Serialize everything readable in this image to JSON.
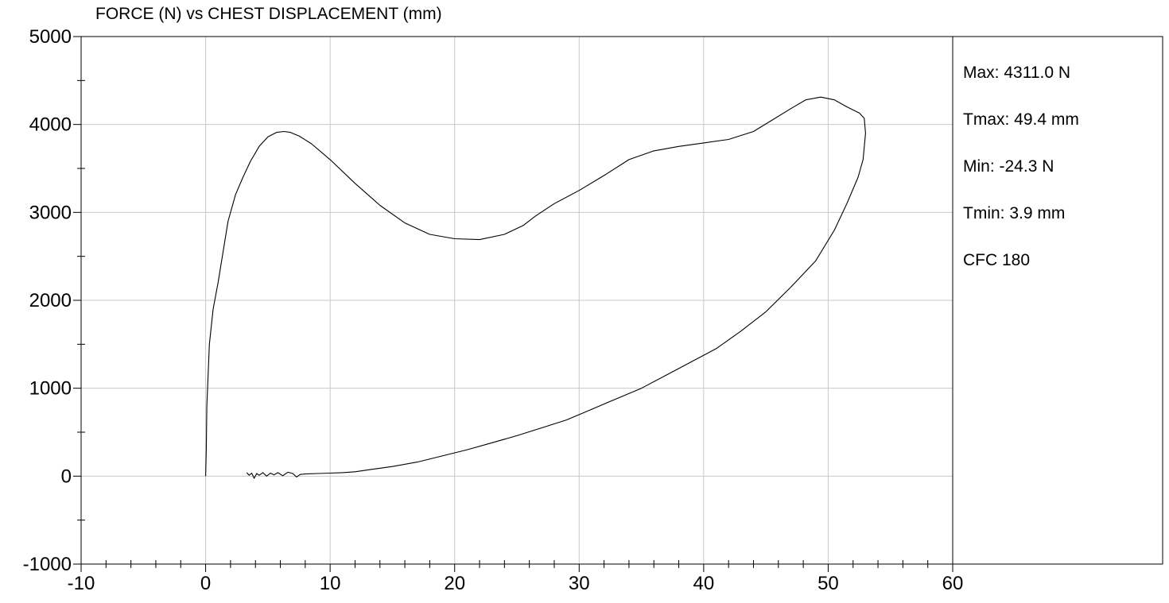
{
  "chart_data": {
    "type": "line",
    "title": "FORCE (N) vs CHEST DISPLACEMENT (mm)",
    "xlabel": "",
    "ylabel": "",
    "xlim": [
      -10,
      60
    ],
    "ylim": [
      -1000,
      5000
    ],
    "x_ticks": [
      -10,
      0,
      10,
      20,
      30,
      40,
      50,
      60
    ],
    "y_ticks": [
      -1000,
      0,
      1000,
      2000,
      3000,
      4000,
      5000
    ],
    "x_minor_step": 2,
    "y_minor_step": 500,
    "grid": true,
    "series": [
      {
        "color": "#000000",
        "x": [
          0.0,
          0.05,
          0.1,
          0.3,
          0.6,
          1.0,
          1.4,
          1.8,
          2.4,
          3.0,
          3.6,
          4.3,
          5.0,
          5.7,
          6.3,
          6.8,
          7.5,
          8.5,
          10.0,
          12.0,
          14.0,
          16.0,
          18.0,
          20.0,
          22.0,
          24.0,
          25.5,
          26.5,
          28.0,
          30.0,
          32.0,
          34.0,
          36.0,
          38.0,
          40.0,
          42.0,
          44.0,
          45.5,
          47.0,
          48.2,
          49.4,
          50.5,
          51.5,
          52.5,
          52.9,
          53.0,
          52.8,
          52.4,
          51.5,
          50.5,
          49.0,
          47.0,
          45.0,
          43.0,
          41.0,
          39.0,
          37.0,
          35.0,
          33.0,
          31.0,
          29.0,
          27.0,
          25.0,
          23.0,
          21.0,
          19.0,
          17.0,
          15.0,
          13.0,
          12.0,
          11.0,
          10.0,
          9.0,
          8.0,
          7.6,
          7.3,
          7.0,
          6.6,
          6.2,
          5.8,
          5.5,
          5.2,
          4.9,
          4.6,
          4.3,
          4.1,
          3.9,
          3.7,
          3.5,
          3.3
        ],
        "y": [
          0,
          300,
          800,
          1500,
          1900,
          2200,
          2550,
          2900,
          3200,
          3400,
          3580,
          3750,
          3860,
          3910,
          3920,
          3910,
          3870,
          3780,
          3600,
          3330,
          3080,
          2880,
          2750,
          2700,
          2690,
          2750,
          2850,
          2960,
          3100,
          3250,
          3420,
          3600,
          3700,
          3750,
          3790,
          3830,
          3920,
          4050,
          4180,
          4280,
          4311,
          4280,
          4200,
          4130,
          4070,
          3900,
          3600,
          3400,
          3100,
          2800,
          2450,
          2150,
          1870,
          1650,
          1450,
          1300,
          1150,
          1000,
          880,
          760,
          640,
          550,
          460,
          380,
          300,
          230,
          160,
          110,
          70,
          50,
          40,
          35,
          30,
          25,
          20,
          -10,
          30,
          45,
          5,
          40,
          15,
          35,
          0,
          40,
          10,
          30,
          -24.3,
          35,
          10,
          40
        ]
      }
    ],
    "stats": [
      "Max: 4311.0 N",
      "Tmax: 49.4 mm",
      "Min: -24.3 N",
      "Tmin: 3.9 mm",
      "CFC 180"
    ]
  }
}
